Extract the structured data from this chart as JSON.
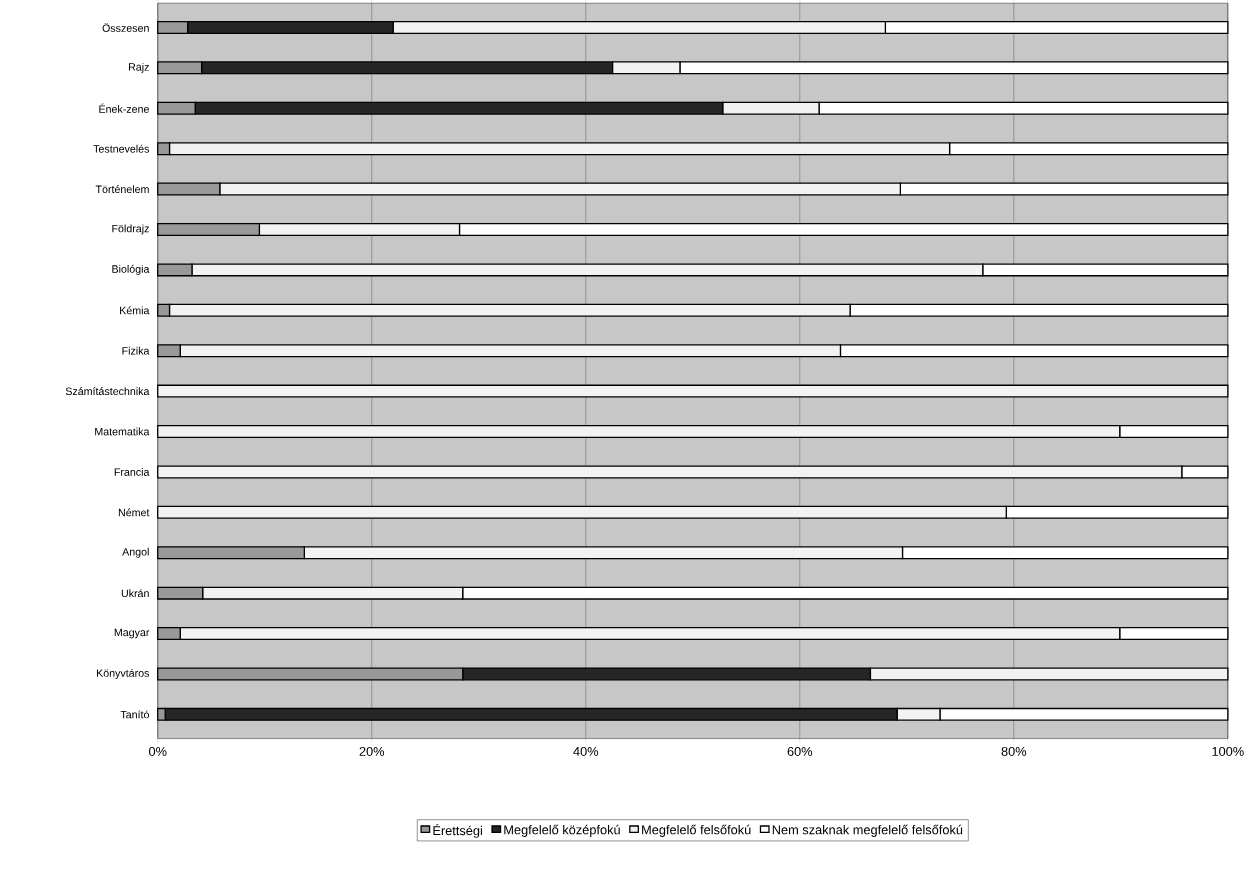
{
  "chart_data": {
    "type": "bar",
    "orientation": "horizontal",
    "stacked": true,
    "categories": [
      "Összesen",
      "Rajz",
      "Ének-zene",
      "Testnevelés",
      "Történelem",
      "Földrajz",
      "Biológia",
      "Kémia",
      "Fizika",
      "Számítástechnika",
      "Matematika",
      "Francia",
      "Német",
      "Angol",
      "Ukrán",
      "Magyar",
      "Könyvtáros",
      "Tanító"
    ],
    "series": [
      {
        "name": "Érettségi",
        "color": "#999999",
        "values": [
          2.8,
          4.1,
          3.5,
          1.1,
          5.8,
          9.5,
          3.2,
          1.1,
          2.1,
          0,
          0,
          0,
          0,
          13.7,
          4.2,
          2.1,
          28.5,
          0.7
        ]
      },
      {
        "name": "Megfelelő középfokú",
        "color": "#262626",
        "values": [
          19.2,
          38.4,
          49.3,
          0,
          0,
          0,
          0,
          0,
          0,
          0,
          0,
          0,
          0,
          0,
          0,
          0,
          38.1,
          68.4
        ]
      },
      {
        "name": "Megfelelő felsőfokú",
        "color": "#f2f2f2",
        "values": [
          46,
          6.3,
          9,
          72.9,
          63.6,
          18.7,
          73.9,
          63.6,
          61.7,
          100,
          89.9,
          95.7,
          79.3,
          55.9,
          24.3,
          87.8,
          33.4,
          4
        ]
      },
      {
        "name": "Nem szaknak megfelelő felsőfokú",
        "color": "#ffffff",
        "values": [
          32,
          51.2,
          38.2,
          26,
          30.6,
          71.8,
          22.9,
          35.3,
          36.2,
          0,
          10.1,
          4.3,
          20.7,
          30.4,
          71.5,
          10.1,
          0,
          26.9
        ]
      }
    ],
    "xlim": [
      0,
      100
    ],
    "xticks": [
      {
        "value": 0,
        "label": "0%"
      },
      {
        "value": 20,
        "label": "20%"
      },
      {
        "value": 40,
        "label": "40%"
      },
      {
        "value": 60,
        "label": "60%"
      },
      {
        "value": 80,
        "label": "80%"
      },
      {
        "value": 100,
        "label": "100%"
      }
    ],
    "grid": "x",
    "legend": "bottom"
  }
}
